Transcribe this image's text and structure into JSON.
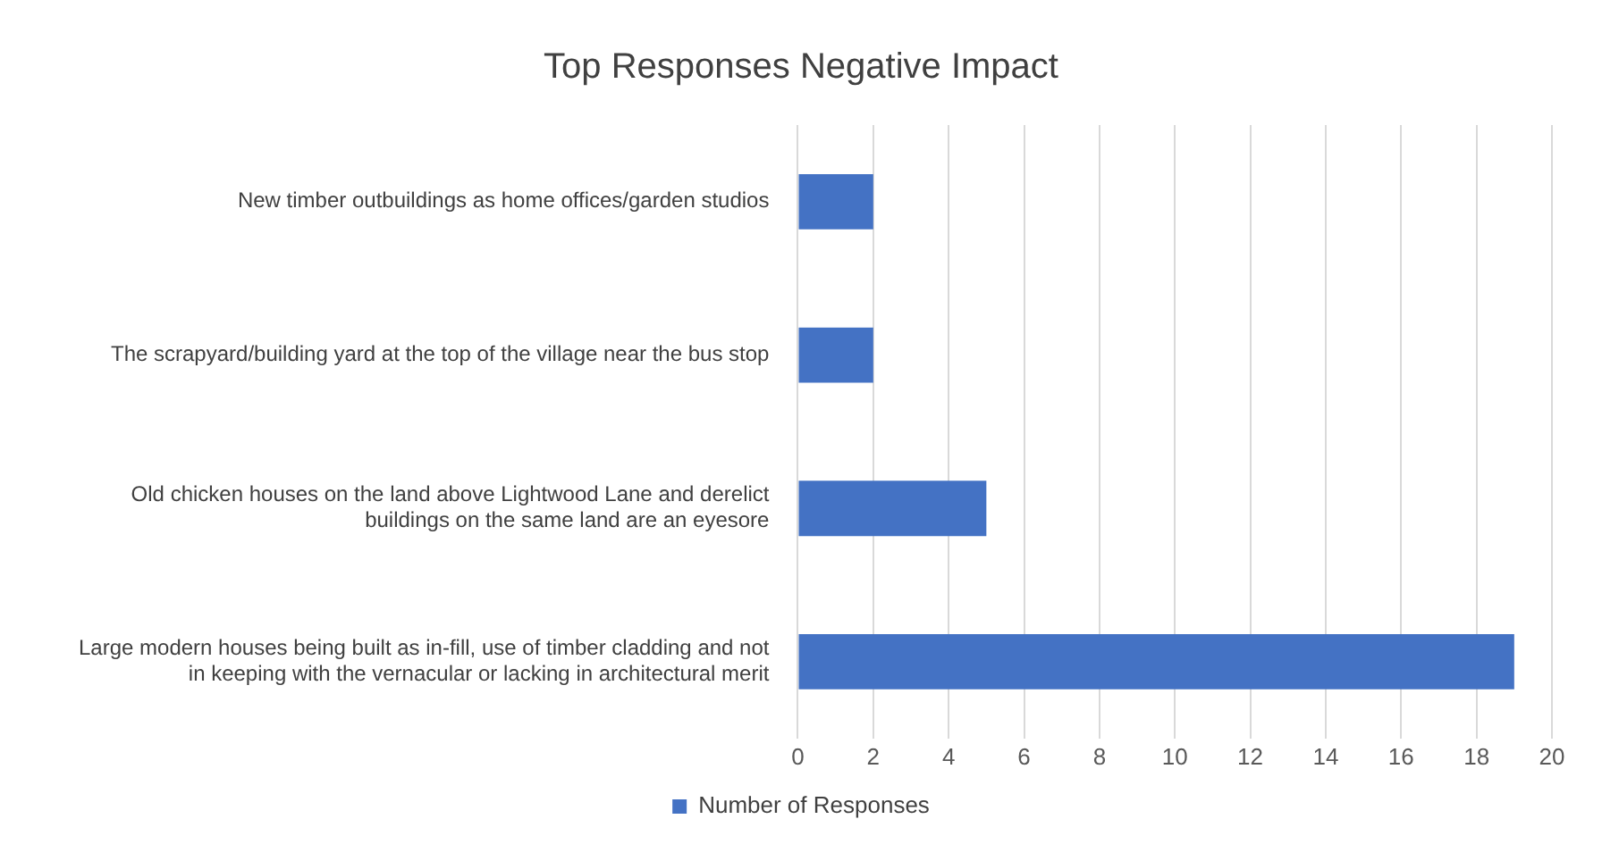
{
  "chart_data": {
    "type": "bar",
    "orientation": "horizontal",
    "title": "Top Responses Negative Impact",
    "categories": [
      "New timber outbuildings as home offices/garden studios",
      "The scrapyard/building yard at the top of the village near the bus stop",
      "Old chicken houses on the land above Lightwood Lane and derelict buildings on the same land are an eyesore",
      "Large modern houses being built as in-fill, use of timber cladding and not in keeping with the vernacular or lacking in architectural merit"
    ],
    "series": [
      {
        "name": "Number of Responses",
        "color": "#4472c4",
        "values": [
          2,
          2,
          5,
          19
        ]
      }
    ],
    "xlim": [
      0,
      20
    ],
    "xticks": [
      0,
      2,
      4,
      6,
      8,
      10,
      12,
      14,
      16,
      18,
      20
    ],
    "grid": "x",
    "legend": "bottom"
  }
}
